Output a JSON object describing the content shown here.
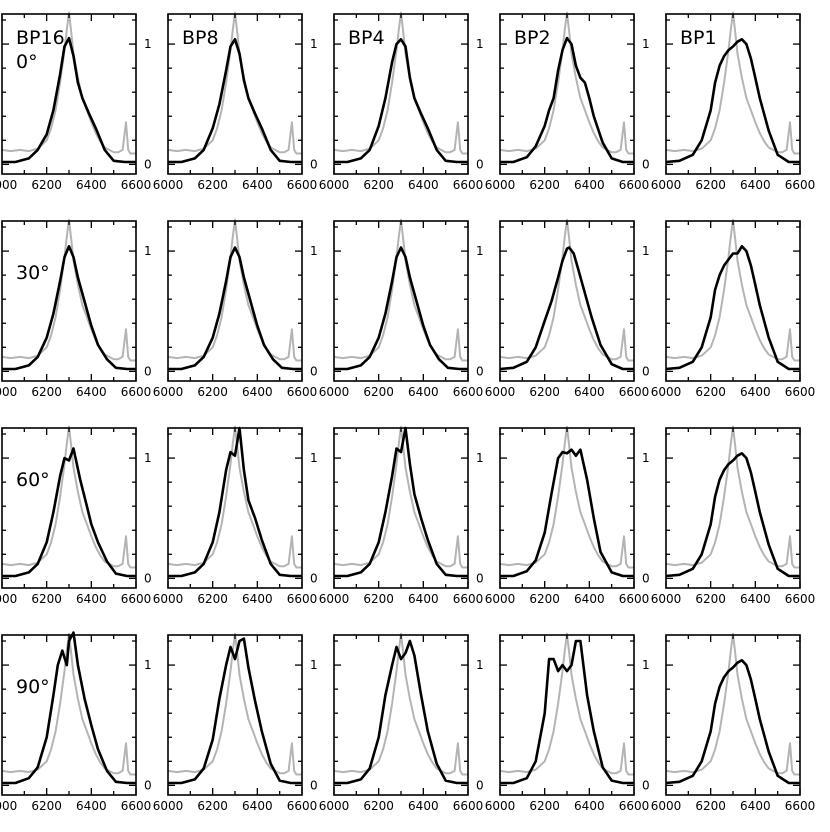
{
  "chart_data": {
    "type": "line",
    "layout": "grid 4 rows x 5 columns",
    "columns": [
      "BP16",
      "BP8",
      "BP4",
      "BP2",
      "BP1"
    ],
    "rows": [
      "0°",
      "30°",
      "60°",
      "90°"
    ],
    "xlim": [
      6000,
      6600
    ],
    "xticks": [
      6000,
      6200,
      6400,
      6600
    ],
    "xtick_labels": [
      "6000",
      "6200",
      "6400",
      "6600"
    ],
    "ylim": [
      -0.08,
      1.25
    ],
    "yticks": [
      0,
      1
    ],
    "ytick_labels": [
      "0",
      "1"
    ],
    "grid": false,
    "legend": "none",
    "colors": {
      "reference": "#b4b4b4",
      "model": "#000000",
      "axes": "#000000"
    },
    "reference_series": {
      "x": [
        6000,
        6040,
        6080,
        6120,
        6160,
        6200,
        6220,
        6240,
        6260,
        6280,
        6290,
        6300,
        6310,
        6320,
        6340,
        6360,
        6380,
        6400,
        6420,
        6440,
        6460,
        6480,
        6500,
        6520,
        6540,
        6555,
        6565,
        6575,
        6590,
        6600
      ],
      "values": [
        0.12,
        0.11,
        0.12,
        0.11,
        0.13,
        0.2,
        0.3,
        0.45,
        0.68,
        0.95,
        1.12,
        1.26,
        1.1,
        0.92,
        0.72,
        0.55,
        0.45,
        0.35,
        0.26,
        0.19,
        0.14,
        0.12,
        0.1,
        0.1,
        0.12,
        0.35,
        0.12,
        0.09,
        0.09,
        0.09
      ]
    },
    "panels": [
      {
        "row": "0°",
        "column": "BP16",
        "x": [
          6000,
          6060,
          6120,
          6160,
          6200,
          6230,
          6260,
          6280,
          6300,
          6320,
          6340,
          6360,
          6390,
          6420,
          6460,
          6500,
          6550,
          6600
        ],
        "values": [
          0.02,
          0.02,
          0.05,
          0.12,
          0.25,
          0.45,
          0.75,
          0.98,
          1.05,
          0.9,
          0.68,
          0.55,
          0.42,
          0.3,
          0.12,
          0.03,
          0.02,
          0.02
        ]
      },
      {
        "row": "0°",
        "column": "BP8",
        "x": [
          6000,
          6060,
          6120,
          6160,
          6200,
          6230,
          6260,
          6280,
          6300,
          6320,
          6340,
          6360,
          6390,
          6420,
          6460,
          6500,
          6550,
          6600
        ],
        "values": [
          0.02,
          0.02,
          0.05,
          0.12,
          0.3,
          0.5,
          0.78,
          0.98,
          1.04,
          0.92,
          0.7,
          0.55,
          0.42,
          0.3,
          0.12,
          0.03,
          0.02,
          0.02
        ]
      },
      {
        "row": "0°",
        "column": "BP4",
        "x": [
          6000,
          6060,
          6120,
          6160,
          6200,
          6230,
          6260,
          6280,
          6300,
          6320,
          6340,
          6360,
          6390,
          6420,
          6460,
          6500,
          6550,
          6600
        ],
        "values": [
          0.02,
          0.02,
          0.05,
          0.12,
          0.32,
          0.55,
          0.85,
          1.0,
          1.04,
          0.98,
          0.72,
          0.55,
          0.42,
          0.3,
          0.12,
          0.03,
          0.02,
          0.02
        ]
      },
      {
        "row": "0°",
        "column": "BP2",
        "x": [
          6000,
          6060,
          6120,
          6160,
          6200,
          6220,
          6240,
          6260,
          6280,
          6300,
          6320,
          6340,
          6360,
          6380,
          6400,
          6420,
          6460,
          6500,
          6550,
          6600
        ],
        "values": [
          0.02,
          0.02,
          0.06,
          0.15,
          0.32,
          0.45,
          0.55,
          0.78,
          0.95,
          1.05,
          1.0,
          0.82,
          0.72,
          0.68,
          0.55,
          0.4,
          0.18,
          0.05,
          0.02,
          0.02
        ]
      },
      {
        "row": "0°",
        "column": "BP1",
        "x": [
          6000,
          6060,
          6120,
          6160,
          6200,
          6220,
          6240,
          6260,
          6280,
          6300,
          6320,
          6340,
          6360,
          6380,
          6400,
          6420,
          6460,
          6500,
          6550,
          6600
        ],
        "values": [
          0.02,
          0.03,
          0.08,
          0.2,
          0.45,
          0.68,
          0.82,
          0.9,
          0.95,
          0.98,
          1.02,
          1.04,
          1.0,
          0.88,
          0.72,
          0.55,
          0.28,
          0.08,
          0.02,
          0.02
        ]
      },
      {
        "row": "30°",
        "column": "BP16",
        "x": [
          6000,
          6060,
          6120,
          6160,
          6200,
          6230,
          6260,
          6280,
          6300,
          6320,
          6340,
          6370,
          6400,
          6430,
          6470,
          6510,
          6560,
          6600
        ],
        "values": [
          0.02,
          0.02,
          0.05,
          0.12,
          0.28,
          0.48,
          0.75,
          0.95,
          1.04,
          0.95,
          0.78,
          0.58,
          0.38,
          0.22,
          0.1,
          0.03,
          0.02,
          0.02
        ]
      },
      {
        "row": "30°",
        "column": "BP8",
        "x": [
          6000,
          6060,
          6120,
          6160,
          6200,
          6230,
          6260,
          6280,
          6300,
          6320,
          6340,
          6370,
          6400,
          6430,
          6470,
          6510,
          6560,
          6600
        ],
        "values": [
          0.02,
          0.02,
          0.05,
          0.12,
          0.28,
          0.48,
          0.75,
          0.95,
          1.03,
          0.95,
          0.78,
          0.58,
          0.38,
          0.22,
          0.1,
          0.03,
          0.02,
          0.02
        ]
      },
      {
        "row": "30°",
        "column": "BP4",
        "x": [
          6000,
          6060,
          6120,
          6160,
          6200,
          6230,
          6260,
          6280,
          6300,
          6320,
          6340,
          6370,
          6400,
          6430,
          6470,
          6510,
          6560,
          6600
        ],
        "values": [
          0.02,
          0.02,
          0.05,
          0.12,
          0.28,
          0.48,
          0.75,
          0.95,
          1.03,
          0.95,
          0.78,
          0.58,
          0.38,
          0.22,
          0.1,
          0.03,
          0.02,
          0.02
        ]
      },
      {
        "row": "30°",
        "column": "BP2",
        "x": [
          6000,
          6060,
          6120,
          6160,
          6200,
          6230,
          6260,
          6280,
          6300,
          6310,
          6330,
          6350,
          6380,
          6410,
          6450,
          6500,
          6550,
          6600
        ],
        "values": [
          0.02,
          0.03,
          0.08,
          0.2,
          0.42,
          0.58,
          0.78,
          0.92,
          1.02,
          1.03,
          0.98,
          0.85,
          0.65,
          0.45,
          0.22,
          0.06,
          0.02,
          0.02
        ]
      },
      {
        "row": "30°",
        "column": "BP1",
        "x": [
          6000,
          6060,
          6120,
          6160,
          6200,
          6220,
          6240,
          6260,
          6280,
          6300,
          6320,
          6340,
          6360,
          6380,
          6400,
          6420,
          6460,
          6500,
          6550,
          6600
        ],
        "values": [
          0.02,
          0.03,
          0.08,
          0.2,
          0.45,
          0.68,
          0.8,
          0.88,
          0.93,
          0.98,
          0.98,
          1.04,
          1.0,
          0.88,
          0.72,
          0.55,
          0.28,
          0.08,
          0.02,
          0.02
        ]
      },
      {
        "row": "60°",
        "column": "BP16",
        "x": [
          6000,
          6060,
          6120,
          6160,
          6200,
          6230,
          6260,
          6280,
          6300,
          6320,
          6350,
          6380,
          6400,
          6430,
          6470,
          6510,
          6560,
          6600
        ],
        "values": [
          0.02,
          0.02,
          0.05,
          0.12,
          0.3,
          0.55,
          0.85,
          1.0,
          0.98,
          1.08,
          0.82,
          0.6,
          0.45,
          0.3,
          0.14,
          0.04,
          0.02,
          0.02
        ]
      },
      {
        "row": "60°",
        "column": "BP8",
        "x": [
          6000,
          6060,
          6120,
          6160,
          6200,
          6230,
          6260,
          6280,
          6300,
          6320,
          6340,
          6360,
          6390,
          6420,
          6460,
          6500,
          6550,
          6600
        ],
        "values": [
          0.02,
          0.02,
          0.05,
          0.12,
          0.3,
          0.55,
          0.9,
          1.05,
          1.02,
          1.25,
          0.9,
          0.65,
          0.5,
          0.32,
          0.12,
          0.03,
          0.02,
          0.02
        ]
      },
      {
        "row": "60°",
        "column": "BP4",
        "x": [
          6000,
          6060,
          6120,
          6160,
          6200,
          6230,
          6260,
          6280,
          6300,
          6320,
          6340,
          6360,
          6390,
          6420,
          6460,
          6500,
          6550,
          6600
        ],
        "values": [
          0.02,
          0.02,
          0.05,
          0.12,
          0.3,
          0.55,
          0.85,
          1.08,
          1.05,
          1.25,
          0.95,
          0.7,
          0.5,
          0.32,
          0.12,
          0.03,
          0.02,
          0.02
        ]
      },
      {
        "row": "60°",
        "column": "BP2",
        "x": [
          6000,
          6060,
          6120,
          6160,
          6200,
          6230,
          6260,
          6280,
          6300,
          6320,
          6340,
          6360,
          6390,
          6420,
          6450,
          6500,
          6550,
          6600
        ],
        "values": [
          0.02,
          0.02,
          0.06,
          0.15,
          0.38,
          0.7,
          1.0,
          1.05,
          1.04,
          1.07,
          1.02,
          1.07,
          0.82,
          0.5,
          0.22,
          0.05,
          0.02,
          0.02
        ]
      },
      {
        "row": "60°",
        "column": "BP1",
        "x": [
          6000,
          6060,
          6120,
          6160,
          6200,
          6220,
          6240,
          6260,
          6280,
          6300,
          6320,
          6340,
          6360,
          6380,
          6400,
          6420,
          6460,
          6500,
          6550,
          6600
        ],
        "values": [
          0.02,
          0.03,
          0.08,
          0.2,
          0.45,
          0.68,
          0.82,
          0.9,
          0.95,
          0.98,
          1.02,
          1.04,
          1.0,
          0.88,
          0.72,
          0.55,
          0.28,
          0.08,
          0.02,
          0.02
        ]
      },
      {
        "row": "90°",
        "column": "BP16",
        "x": [
          6000,
          6060,
          6120,
          6160,
          6200,
          6230,
          6250,
          6270,
          6290,
          6300,
          6320,
          6340,
          6370,
          6400,
          6430,
          6470,
          6510,
          6560,
          6600
        ],
        "values": [
          0.02,
          0.02,
          0.06,
          0.15,
          0.4,
          0.75,
          1.0,
          1.12,
          1.0,
          1.2,
          1.27,
          1.0,
          0.72,
          0.5,
          0.3,
          0.12,
          0.03,
          0.02,
          0.02
        ]
      },
      {
        "row": "90°",
        "column": "BP8",
        "x": [
          6000,
          6060,
          6120,
          6160,
          6200,
          6230,
          6260,
          6280,
          6300,
          6320,
          6340,
          6360,
          6390,
          6420,
          6460,
          6500,
          6550,
          6600
        ],
        "values": [
          0.02,
          0.02,
          0.05,
          0.14,
          0.38,
          0.72,
          1.0,
          1.15,
          1.05,
          1.2,
          1.22,
          0.98,
          0.7,
          0.45,
          0.18,
          0.04,
          0.02,
          0.02
        ]
      },
      {
        "row": "90°",
        "column": "BP4",
        "x": [
          6000,
          6060,
          6120,
          6160,
          6200,
          6230,
          6260,
          6280,
          6300,
          6320,
          6340,
          6360,
          6390,
          6420,
          6460,
          6500,
          6550,
          6600
        ],
        "values": [
          0.02,
          0.02,
          0.05,
          0.14,
          0.4,
          0.75,
          1.0,
          1.15,
          1.05,
          1.1,
          1.2,
          1.08,
          0.75,
          0.45,
          0.18,
          0.04,
          0.02,
          0.02
        ]
      },
      {
        "row": "90°",
        "column": "BP2",
        "x": [
          6000,
          6060,
          6120,
          6160,
          6200,
          6220,
          6240,
          6260,
          6280,
          6300,
          6320,
          6340,
          6360,
          6390,
          6420,
          6460,
          6500,
          6550,
          6600
        ],
        "values": [
          0.02,
          0.02,
          0.06,
          0.2,
          0.6,
          1.05,
          1.05,
          0.95,
          1.0,
          0.95,
          1.0,
          1.2,
          1.2,
          0.75,
          0.45,
          0.15,
          0.04,
          0.02,
          0.02
        ]
      },
      {
        "row": "90°",
        "column": "BP1",
        "x": [
          6000,
          6060,
          6120,
          6160,
          6200,
          6220,
          6240,
          6260,
          6280,
          6300,
          6320,
          6340,
          6360,
          6380,
          6400,
          6420,
          6460,
          6500,
          6550,
          6600
        ],
        "values": [
          0.02,
          0.03,
          0.08,
          0.2,
          0.45,
          0.68,
          0.82,
          0.9,
          0.95,
          0.98,
          1.02,
          1.04,
          1.0,
          0.88,
          0.72,
          0.55,
          0.28,
          0.08,
          0.02,
          0.02
        ]
      }
    ]
  }
}
